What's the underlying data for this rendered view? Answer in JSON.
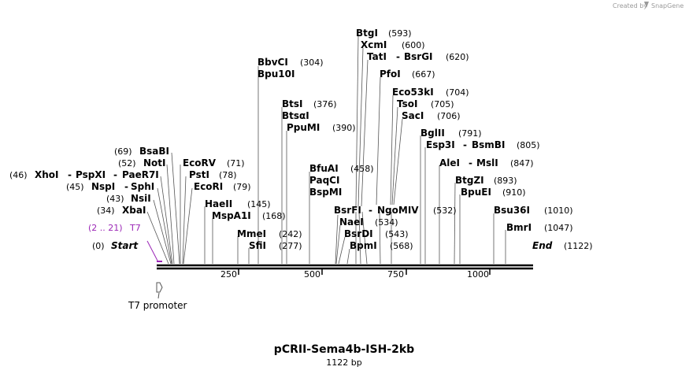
{
  "credit": {
    "prefix": "Created by",
    "brand": "SnapGene"
  },
  "map": {
    "title": "pCRII-Sema4b-ISH-2kb",
    "length_label": "1122 bp",
    "total_bp": 1122,
    "start": {
      "pos": "(0)",
      "name": "Start"
    },
    "end": {
      "name": "End",
      "pos": "(1122)"
    },
    "ticks": [
      250,
      500,
      750,
      1000
    ],
    "tick_labels": [
      "250",
      "500",
      "750",
      "1000"
    ],
    "feature": {
      "name": "T7 promoter",
      "start": 2,
      "end": 21
    },
    "primer": {
      "range": "(2 .. 21)",
      "name": "T7"
    }
  },
  "sites": [
    {
      "pos": "(34)",
      "bp": 34,
      "parts": [
        "XbaI"
      ]
    },
    {
      "pos": "(43)",
      "bp": 43,
      "parts": [
        "NsiI"
      ]
    },
    {
      "pos": "(45)",
      "bp": 45,
      "parts": [
        "NspI",
        "SphI"
      ]
    },
    {
      "pos": "(46)",
      "bp": 46,
      "parts": [
        "XhoI",
        "PspXI",
        "PaeR7I"
      ]
    },
    {
      "pos": "(52)",
      "bp": 52,
      "parts": [
        "NotI"
      ]
    },
    {
      "pos": "(69)",
      "bp": 69,
      "parts": [
        "BsaBI"
      ]
    },
    {
      "pos": "(71)",
      "bp": 71,
      "parts": [
        "EcoRV"
      ]
    },
    {
      "pos": "(78)",
      "bp": 78,
      "parts": [
        "PstI"
      ]
    },
    {
      "pos": "(79)",
      "bp": 79,
      "parts": [
        "EcoRI"
      ]
    },
    {
      "pos": "(145)",
      "bp": 145,
      "parts": [
        "HaeII"
      ]
    },
    {
      "pos": "(168)",
      "bp": 168,
      "parts": [
        "MspA1I"
      ]
    },
    {
      "pos": "(242)",
      "bp": 242,
      "parts": [
        "MmeI"
      ]
    },
    {
      "pos": "(277)",
      "bp": 277,
      "parts": [
        "SfiI"
      ]
    },
    {
      "pos": "(304)",
      "bp": 304,
      "parts": [
        "BbvCI"
      ],
      "extra": "Bpu10I"
    },
    {
      "pos": "(376)",
      "bp": 376,
      "parts": [
        "BtsI"
      ],
      "extra": "BtsαI"
    },
    {
      "pos": "(390)",
      "bp": 390,
      "parts": [
        "PpuMI"
      ]
    },
    {
      "pos": "(458)",
      "bp": 458,
      "parts": [
        "BfuAI"
      ],
      "extra": [
        "PaqCI",
        "BspMI"
      ]
    },
    {
      "pos": "(532)",
      "bp": 532,
      "parts": [
        "BsrFI",
        "NgoMIV"
      ]
    },
    {
      "pos": "(534)",
      "bp": 534,
      "parts": [
        "NaeI"
      ]
    },
    {
      "pos": "(543)",
      "bp": 543,
      "parts": [
        "BsrDI"
      ]
    },
    {
      "pos": "(568)",
      "bp": 568,
      "parts": [
        "BpmI"
      ]
    },
    {
      "pos": "(593)",
      "bp": 593,
      "parts": [
        "BtgI"
      ]
    },
    {
      "pos": "(600)",
      "bp": 600,
      "parts": [
        "XcmI"
      ]
    },
    {
      "pos": "(620)",
      "bp": 620,
      "parts": [
        "TatI",
        "BsrGI"
      ]
    },
    {
      "pos": "(667)",
      "bp": 667,
      "parts": [
        "PfoI"
      ]
    },
    {
      "pos": "(704)",
      "bp": 704,
      "parts": [
        "Eco53kI"
      ]
    },
    {
      "pos": "(705)",
      "bp": 705,
      "parts": [
        "TsoI"
      ]
    },
    {
      "pos": "(706)",
      "bp": 706,
      "parts": [
        "SacI"
      ]
    },
    {
      "pos": "(791)",
      "bp": 791,
      "parts": [
        "BglII"
      ]
    },
    {
      "pos": "(805)",
      "bp": 805,
      "parts": [
        "Esp3I",
        "BsmBI"
      ]
    },
    {
      "pos": "(847)",
      "bp": 847,
      "parts": [
        "AleI",
        "MslI"
      ]
    },
    {
      "pos": "(893)",
      "bp": 893,
      "parts": [
        "BtgZI"
      ]
    },
    {
      "pos": "(910)",
      "bp": 910,
      "parts": [
        "BpuEI"
      ]
    },
    {
      "pos": "(1010)",
      "bp": 1010,
      "parts": [
        "Bsu36I"
      ]
    },
    {
      "pos": "(1047)",
      "bp": 1047,
      "parts": [
        "BmrI"
      ]
    }
  ]
}
